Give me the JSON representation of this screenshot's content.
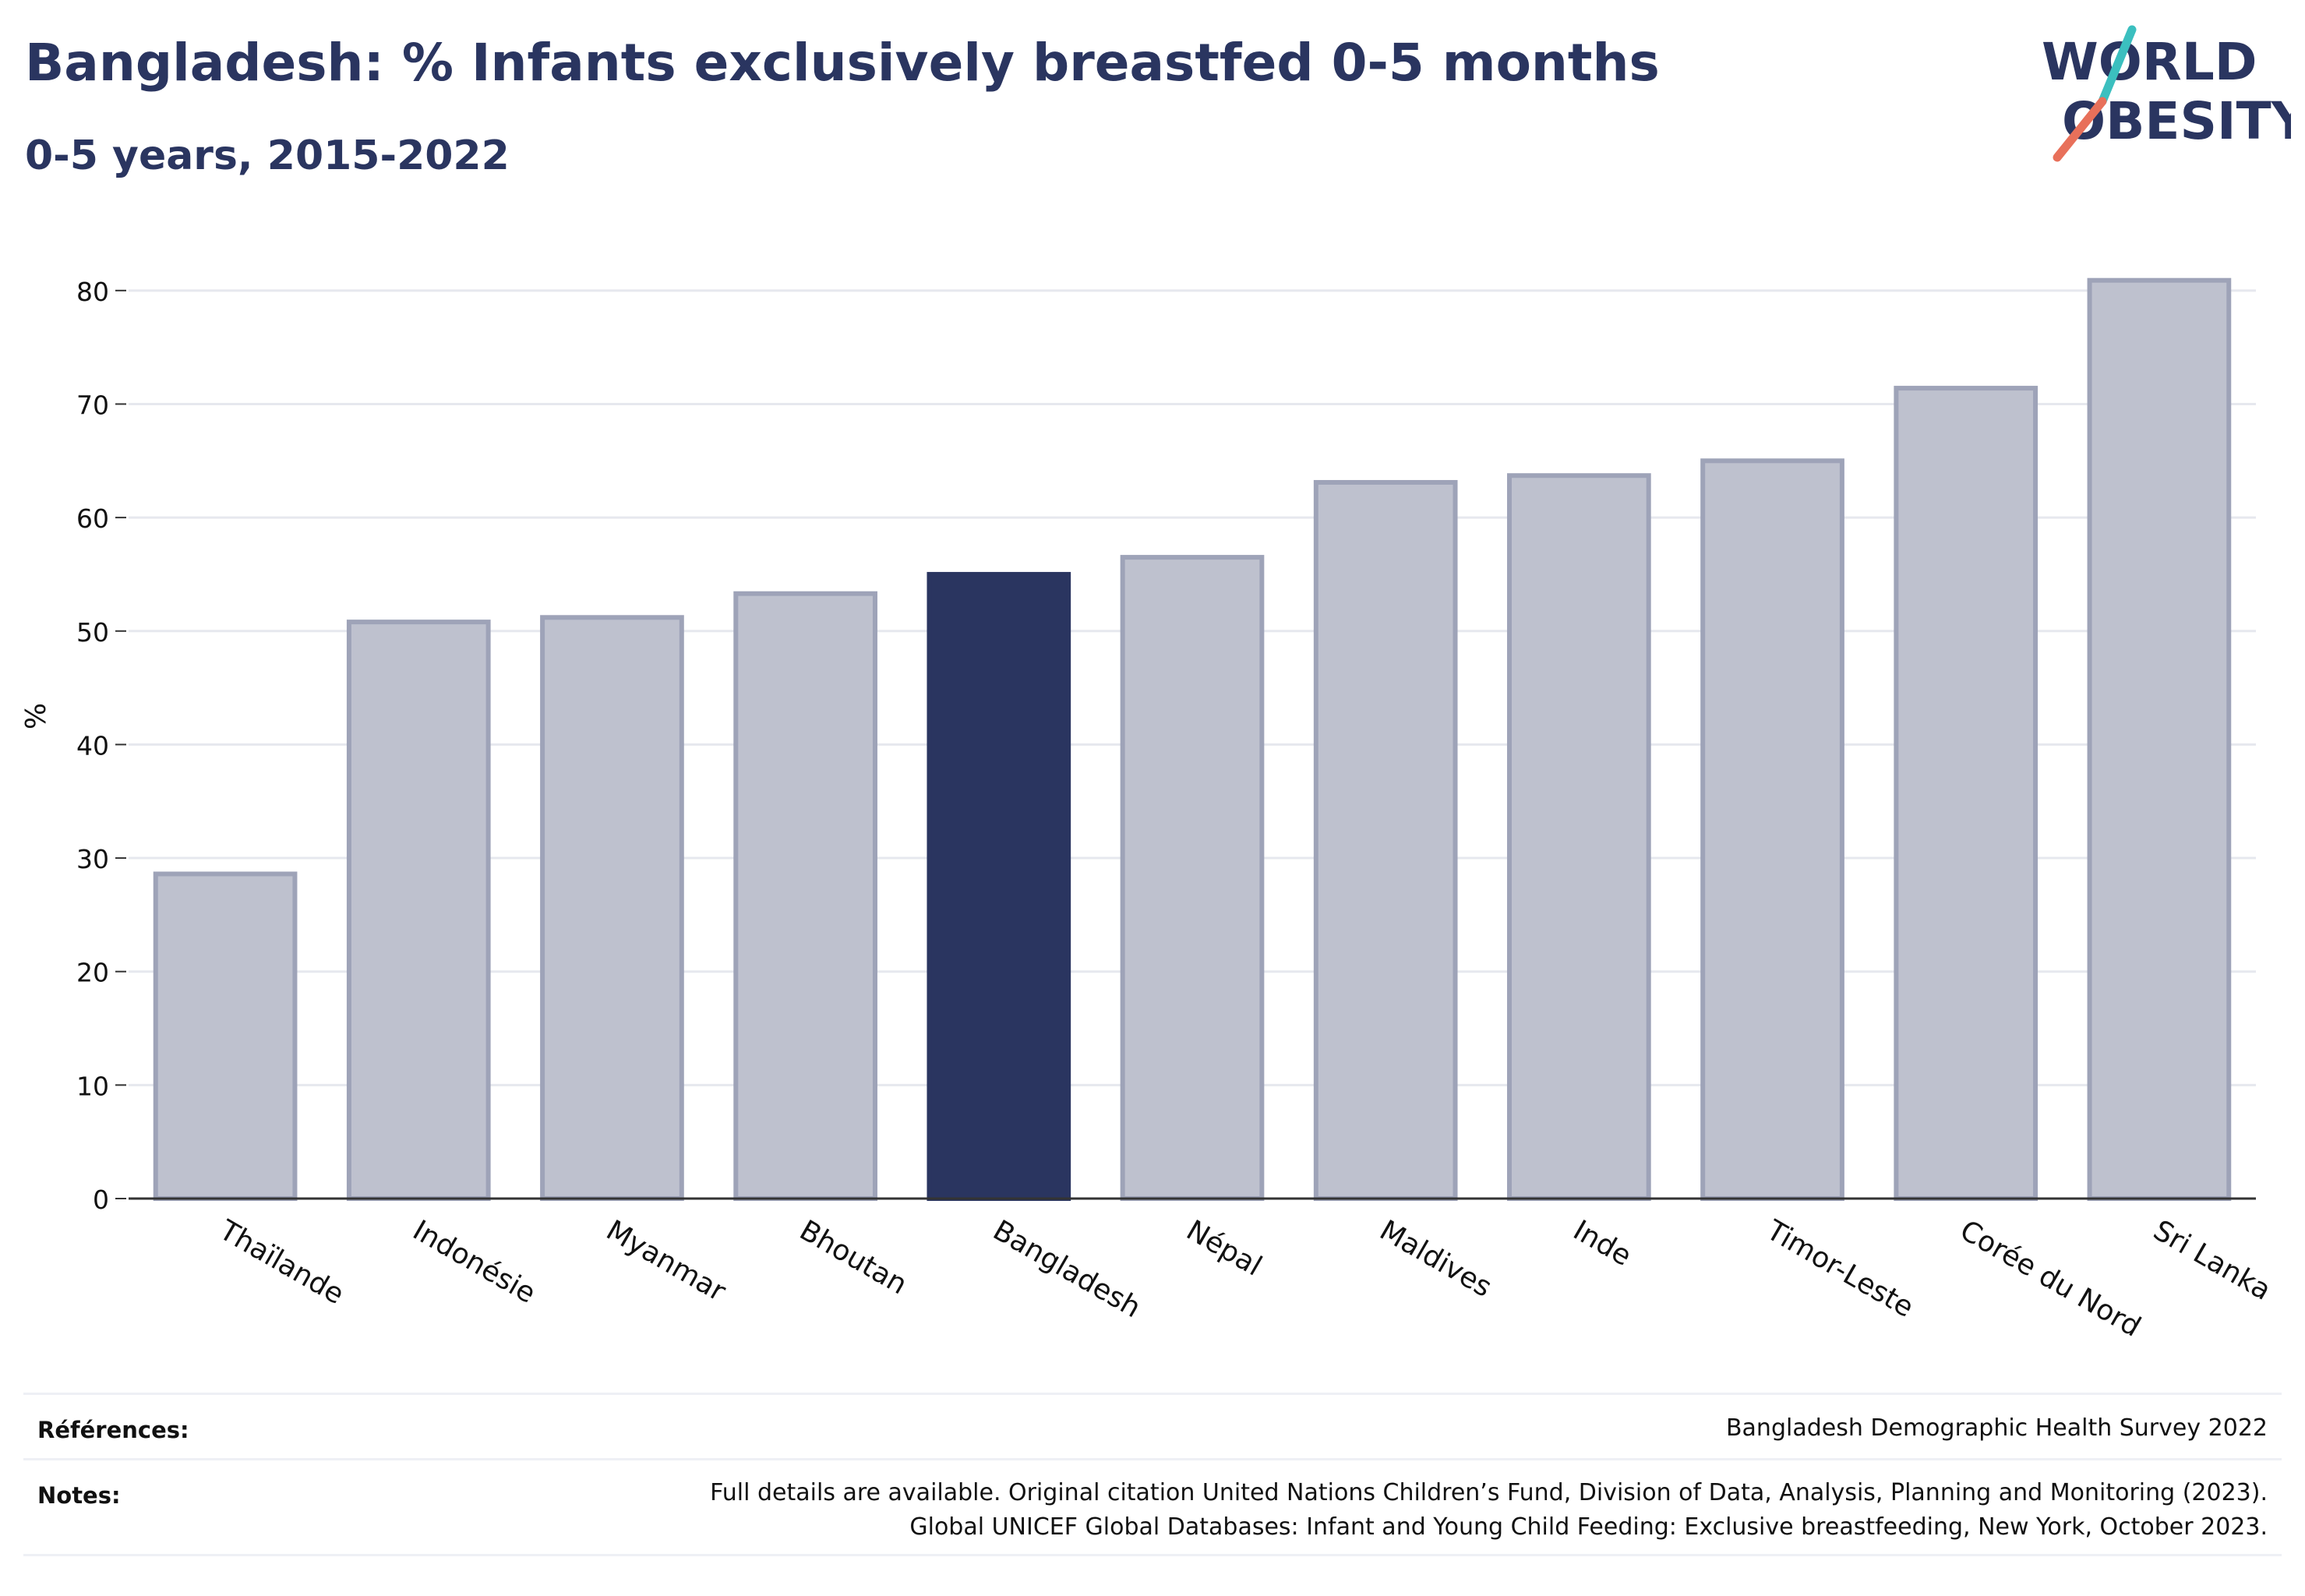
{
  "header": {
    "title": "Bangladesh: % Infants exclusively breastfed 0-5 months",
    "subtitle": "0-5 years, 2015-2022"
  },
  "logo": {
    "line1": "WORLD",
    "line2": "OBESITY",
    "accent_teal": "#3bbfbf",
    "accent_coral": "#e8705a"
  },
  "chart_data": {
    "type": "bar",
    "title": "Bangladesh: % Infants exclusively breastfed 0-5 months",
    "subtitle": "0-5 years, 2015-2022",
    "xlabel": "",
    "ylabel": "%",
    "ylim": [
      0,
      85
    ],
    "yticks": [
      0,
      10,
      20,
      30,
      40,
      50,
      60,
      70,
      80
    ],
    "grid": true,
    "highlight": "Bangladesh",
    "colors": {
      "bar": "#bec1ce",
      "bar_edge": "#9ea3b8",
      "highlight": "#2a3560"
    },
    "categories": [
      "Thaïlande",
      "Indonésie",
      "Myanmar",
      "Bhoutan",
      "Bangladesh",
      "Népal",
      "Maldives",
      "Inde",
      "Timor-Leste",
      "Corée du Nord",
      "Sri Lanka"
    ],
    "values": [
      28.6,
      50.8,
      51.2,
      53.3,
      55.0,
      56.5,
      63.1,
      63.7,
      65.0,
      71.4,
      80.9
    ]
  },
  "footer": {
    "references_label": "Références:",
    "references_text": "Bangladesh Demographic Health Survey 2022",
    "notes_label": "Notes:",
    "notes_line1": "Full details are available. Original citation United Nations Children’s Fund, Division of Data, Analysis, Planning and Monitoring (2023).",
    "notes_line2": "Global UNICEF Global Databases: Infant and Young Child Feeding: Exclusive breastfeeding, New York, October 2023."
  }
}
